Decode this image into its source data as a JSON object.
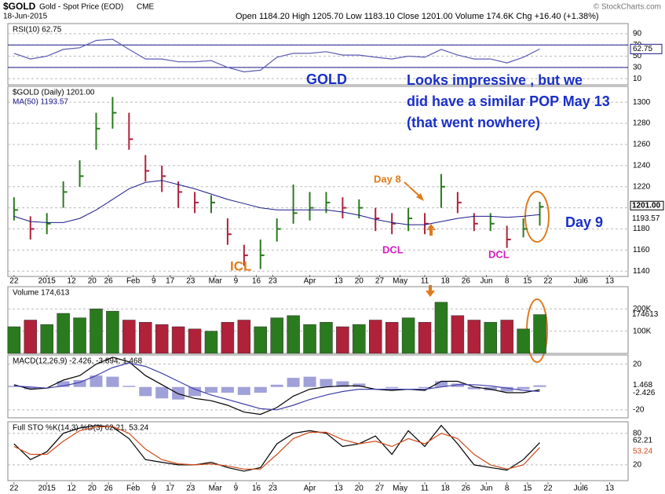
{
  "header": {
    "symbol": "$GOLD",
    "description": "Gold - Spot Price (EOD)",
    "exchange": "CME",
    "date": "18-Jun-2015",
    "quote": "Open 1184.20 High 1205.70 Low 1183.10 Close 1201.00 Volume 174.6K Chg +16.40 (+1.38%)",
    "credit": "© StockCharts.com"
  },
  "chart_data": [
    {
      "type": "line",
      "legend": "RSI(10) 62.75",
      "color": "#5b5bb5",
      "ylim": [
        -1,
        108
      ],
      "yticks": [
        10,
        30,
        50,
        70,
        90
      ],
      "bands": [
        30,
        70
      ],
      "values": [
        55,
        45,
        50,
        62,
        65,
        78,
        80,
        62,
        45,
        45,
        40,
        40,
        42,
        30,
        22,
        25,
        48,
        55,
        55,
        58,
        52,
        52,
        48,
        45,
        50,
        48,
        62,
        52,
        45,
        45,
        38,
        48,
        62.75
      ]
    },
    {
      "type": "ohlc",
      "legend": "$GOLD (Daily) 1201.00",
      "ma_legend": "MA(50) 1193.57",
      "last_label": "1201.00",
      "up_color": "#2a7a1e",
      "down_color": "#b0213a",
      "ma_color": "#1a1a8a",
      "ylim": [
        1135,
        1315
      ],
      "yticks": [
        1140,
        1160,
        1180,
        1200,
        1220,
        1240,
        1260,
        1280,
        1300
      ],
      "xlim": [
        -1.5,
        149.5
      ],
      "xticks": [
        {
          "value": 0,
          "label": "22"
        },
        {
          "value": 8,
          "label": "2015"
        },
        {
          "value": 14,
          "label": "12"
        },
        {
          "value": 19,
          "label": "20"
        },
        {
          "value": 23,
          "label": "26"
        },
        {
          "value": 29,
          "label": "Feb"
        },
        {
          "value": 34,
          "label": "9"
        },
        {
          "value": 38,
          "label": "17"
        },
        {
          "value": 43,
          "label": "23"
        },
        {
          "value": 49,
          "label": "Mar"
        },
        {
          "value": 54,
          "label": "9"
        },
        {
          "value": 59,
          "label": "16"
        },
        {
          "value": 63,
          "label": "23"
        },
        {
          "value": 72,
          "label": "Apr"
        },
        {
          "value": 79,
          "label": "13"
        },
        {
          "value": 84,
          "label": "20"
        },
        {
          "value": 89,
          "label": "27"
        },
        {
          "value": 94,
          "label": "May"
        },
        {
          "value": 100,
          "label": "11"
        },
        {
          "value": 105,
          "label": "18"
        },
        {
          "value": 110,
          "label": "26"
        },
        {
          "value": 115,
          "label": "Jun"
        },
        {
          "value": 120,
          "label": "8"
        },
        {
          "value": 125,
          "label": "15"
        },
        {
          "value": 130,
          "label": "22"
        },
        {
          "value": 138,
          "label": "Jul6"
        },
        {
          "value": 145,
          "label": "13"
        }
      ],
      "x": [
        0,
        4,
        8,
        12,
        16,
        20,
        24,
        28,
        32,
        36,
        40,
        44,
        48,
        52,
        56,
        60,
        64,
        68,
        72,
        76,
        80,
        84,
        88,
        92,
        96,
        100,
        104,
        108,
        112,
        116,
        120,
        124,
        128
      ],
      "close": [
        1198,
        1180,
        1185,
        1215,
        1230,
        1275,
        1290,
        1265,
        1235,
        1230,
        1215,
        1205,
        1205,
        1175,
        1155,
        1155,
        1180,
        1195,
        1200,
        1205,
        1200,
        1200,
        1190,
        1185,
        1190,
        1185,
        1220,
        1205,
        1185,
        1185,
        1170,
        1180,
        1201
      ],
      "high": [
        1210,
        1192,
        1195,
        1225,
        1245,
        1290,
        1305,
        1290,
        1250,
        1240,
        1225,
        1215,
        1212,
        1190,
        1165,
        1170,
        1190,
        1222,
        1215,
        1215,
        1210,
        1208,
        1200,
        1195,
        1200,
        1195,
        1232,
        1215,
        1195,
        1195,
        1183,
        1190,
        1205.7
      ],
      "low": [
        1188,
        1170,
        1175,
        1200,
        1220,
        1255,
        1275,
        1255,
        1225,
        1215,
        1200,
        1195,
        1195,
        1165,
        1145,
        1142,
        1168,
        1185,
        1188,
        1195,
        1190,
        1190,
        1178,
        1175,
        1178,
        1175,
        1200,
        1195,
        1178,
        1178,
        1162,
        1172,
        1183.1
      ],
      "ma": [
        1192,
        1187,
        1186,
        1186,
        1190,
        1198,
        1208,
        1218,
        1224,
        1226,
        1222,
        1218,
        1213,
        1208,
        1204,
        1200,
        1198,
        1198,
        1198,
        1198,
        1196,
        1193,
        1189,
        1186,
        1184,
        1184,
        1187,
        1190,
        1192,
        1192,
        1191,
        1192,
        1193.57
      ],
      "annotations": [
        "GOLD",
        "Looks impressive ,  but we",
        "did have a similar  POP May 13",
        "(that went nowhere)",
        "Day 8",
        "Day 9",
        "ICL",
        "DCL",
        "DCL"
      ]
    },
    {
      "type": "bar",
      "legend": "Volume 174,613",
      "ylim": [
        0,
        300000
      ],
      "yticks": [
        {
          "value": 100000,
          "label": "100K"
        },
        {
          "value": 200000,
          "label": "200K"
        }
      ],
      "values": [
        120000,
        150000,
        130000,
        180000,
        160000,
        200000,
        190000,
        150000,
        140000,
        130000,
        120000,
        110000,
        100000,
        140000,
        150000,
        120000,
        160000,
        170000,
        130000,
        140000,
        120000,
        130000,
        150000,
        140000,
        160000,
        140000,
        230000,
        170000,
        150000,
        140000,
        150000,
        110000,
        174613
      ]
    },
    {
      "type": "macd",
      "legend": "MACD(12,26,9) -2.426, -3.894, 1.468",
      "ylim": [
        -27,
        28
      ],
      "yticks": [
        -20,
        20
      ],
      "series": [
        {
          "name": "MACD",
          "color": "#000000",
          "values": [
            2,
            -2,
            -1,
            6,
            10,
            20,
            26,
            22,
            10,
            2,
            -6,
            -10,
            -12,
            -16,
            -22,
            -24,
            -18,
            -8,
            -2,
            0,
            1,
            1,
            -2,
            -3,
            -2,
            -3,
            5,
            5,
            0,
            -2,
            -5,
            -5,
            -2.426
          ]
        },
        {
          "name": "Signal",
          "color": "#3f3faa",
          "values": [
            1,
            0,
            -1,
            1,
            4,
            10,
            17,
            21,
            18,
            12,
            5,
            -2,
            -7,
            -11,
            -15,
            -19,
            -20,
            -16,
            -11,
            -7,
            -4,
            -2,
            -2,
            -2,
            -2,
            -2,
            0,
            2,
            2,
            1,
            -1,
            -3,
            -3.894
          ]
        }
      ],
      "histogram": {
        "color": "#8a8ad0",
        "values": [
          1,
          -2,
          0,
          5,
          6,
          10,
          9,
          1,
          -8,
          -10,
          -11,
          -8,
          -5,
          -5,
          -7,
          -5,
          2,
          8,
          9,
          7,
          5,
          3,
          0,
          -1,
          0,
          -1,
          5,
          3,
          -2,
          -3,
          -4,
          -2,
          1.468
        ]
      }
    },
    {
      "type": "stochastic",
      "legend": "Full STO %K(14,3) %D(3) 62.21, 53.24",
      "ylim": [
        -10,
        102
      ],
      "yticks": [
        20,
        80
      ],
      "series": [
        {
          "name": "%K",
          "color": "#000000",
          "values": [
            60,
            30,
            45,
            80,
            90,
            95,
            92,
            70,
            30,
            25,
            20,
            20,
            25,
            15,
            8,
            15,
            60,
            80,
            85,
            80,
            55,
            60,
            75,
            40,
            85,
            55,
            95,
            60,
            20,
            15,
            10,
            30,
            62.21
          ]
        },
        {
          "name": "%D",
          "color": "#d04a1a",
          "values": [
            55,
            40,
            40,
            65,
            85,
            92,
            93,
            80,
            50,
            30,
            22,
            20,
            22,
            18,
            12,
            12,
            40,
            70,
            82,
            82,
            68,
            60,
            65,
            55,
            70,
            60,
            80,
            70,
            40,
            20,
            12,
            20,
            53.24
          ]
        }
      ]
    }
  ]
}
